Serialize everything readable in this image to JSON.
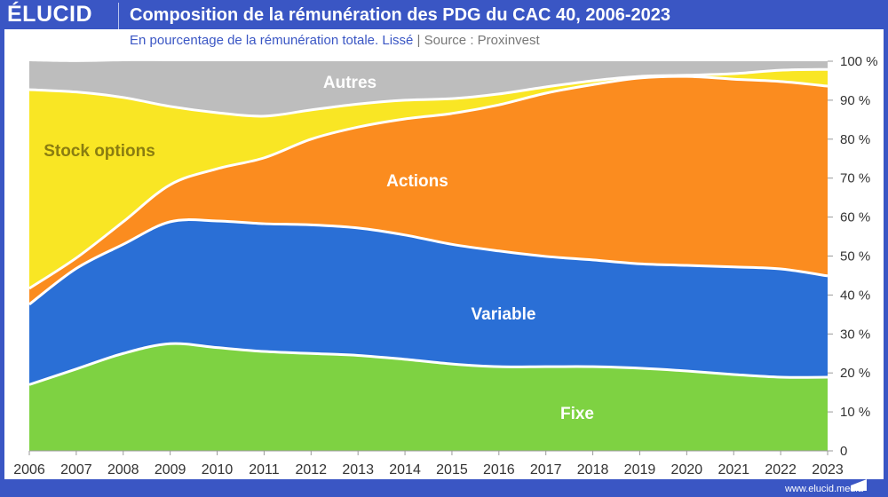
{
  "header": {
    "logo": "ÉLUCID",
    "title": "Composition de la rémunération des PDG du CAC 40, 2006-2023"
  },
  "subtitle": {
    "text": "En pourcentage de la rémunération totale. Lissé",
    "separator": "|",
    "source": "Source : Proxinvest"
  },
  "footer": {
    "url": "www.elucid.media"
  },
  "colors": {
    "frame": "#3a56c4"
  },
  "chart_data": {
    "type": "area",
    "stacked": true,
    "smoothed": true,
    "x": [
      2006,
      2007,
      2008,
      2009,
      2010,
      2011,
      2012,
      2013,
      2014,
      2015,
      2016,
      2017,
      2018,
      2019,
      2020,
      2021,
      2022,
      2023
    ],
    "ylim": [
      0,
      100
    ],
    "yticks": [
      "0",
      "10 %",
      "20 %",
      "30 %",
      "40 %",
      "50 %",
      "60 %",
      "70 %",
      "80 %",
      "90 %",
      "100 %"
    ],
    "xticks": [
      "2006",
      "2007",
      "2008",
      "2009",
      "2010",
      "2011",
      "2012",
      "2013",
      "2014",
      "2015",
      "2016",
      "2017",
      "2018",
      "2019",
      "2020",
      "2021",
      "2022",
      "2023"
    ],
    "grid": false,
    "series": [
      {
        "name": "Fixe",
        "color": "#7ed242",
        "label_color": "#ffffff",
        "values": [
          17,
          21,
          25,
          27.5,
          26.5,
          25.5,
          25,
          24.5,
          23.5,
          22.3,
          21.6,
          21.6,
          21.6,
          21.2,
          20.5,
          19.6,
          18.9,
          18.9
        ]
      },
      {
        "name": "Variable",
        "color": "#2a6fd6",
        "label_color": "#ffffff",
        "values": [
          20.6,
          25.8,
          28,
          31.3,
          32.5,
          32.8,
          33,
          32.7,
          31.9,
          30.7,
          29.7,
          28.3,
          27.4,
          26.8,
          27.1,
          27.6,
          27.8,
          26
        ]
      },
      {
        "name": "Actions",
        "color": "#fb8c1f",
        "label_color": "#ffffff",
        "values": [
          4.1,
          2.7,
          5.8,
          9.5,
          13.4,
          16.9,
          22,
          25.9,
          29.8,
          33.6,
          37.5,
          41.9,
          45,
          47.7,
          48.5,
          48.2,
          48.1,
          48.7
        ]
      },
      {
        "name": "Stock options",
        "color": "#f9e624",
        "label_color": "#8a7d10",
        "values": [
          51,
          42.6,
          31.9,
          20.1,
          14.4,
          10.7,
          7.5,
          5.9,
          4.8,
          3.8,
          2.8,
          1.6,
          1,
          0.4,
          0.3,
          1.4,
          2.9,
          4.3
        ]
      },
      {
        "name": "Autres",
        "color": "#bdbdbd",
        "label_color": "#ffffff",
        "values": [
          7.3,
          7.7,
          9.3,
          11.6,
          13.2,
          14.1,
          12.5,
          11,
          10,
          9.6,
          8.4,
          6.6,
          5,
          3.9,
          3.6,
          3.2,
          2.3,
          2.1
        ]
      }
    ]
  }
}
